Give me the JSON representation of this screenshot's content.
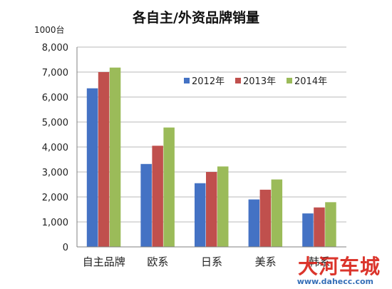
{
  "chart_data": {
    "type": "bar",
    "title": "各自主/外资品牌销量",
    "ylabel": "1000台",
    "xlabel": "",
    "categories": [
      "自主品牌",
      "欧系",
      "日系",
      "美系",
      "韩系"
    ],
    "series": [
      {
        "name": "2012年",
        "color": "#4472c4",
        "values": [
          6350,
          3320,
          2550,
          1900,
          1340
        ]
      },
      {
        "name": "2013年",
        "color": "#c0504d",
        "values": [
          7000,
          4050,
          3000,
          2290,
          1580
        ]
      },
      {
        "name": "2014年",
        "color": "#9bbb59",
        "values": [
          7180,
          4780,
          3220,
          2700,
          1790
        ]
      }
    ],
    "ylim": [
      0,
      8000
    ],
    "yticks": [
      0,
      1000,
      2000,
      3000,
      4000,
      5000,
      6000,
      7000,
      8000
    ],
    "ytick_labels": [
      "0",
      "1,000",
      "2,000",
      "3,000",
      "4,000",
      "5,000",
      "6,000",
      "7,000",
      "8,000"
    ],
    "grid": true,
    "legend_position": "top-right"
  },
  "watermark": {
    "logo_text": "大河车城",
    "url": "www.dahecc.com"
  }
}
